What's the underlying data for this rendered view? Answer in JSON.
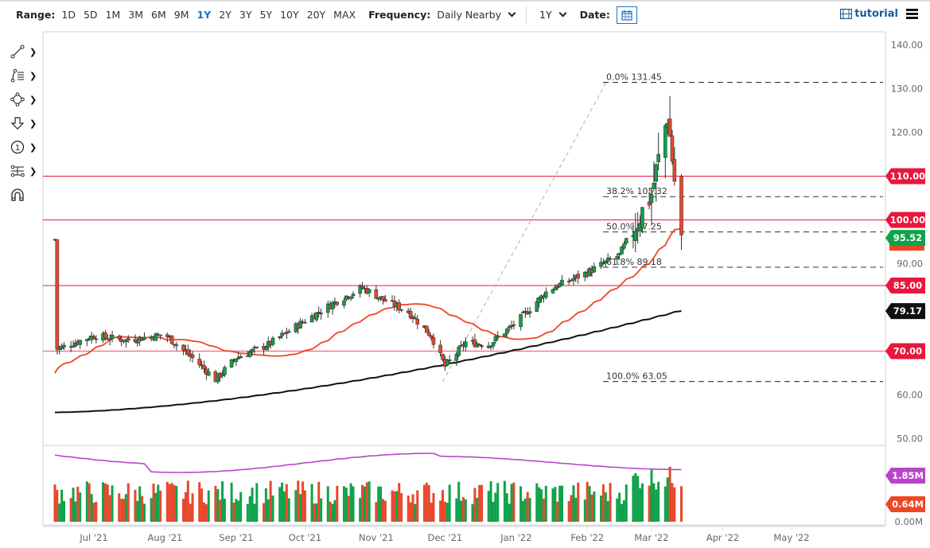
{
  "toolbar_top": {
    "range_label": "Range:",
    "ranges": [
      "1D",
      "5D",
      "1M",
      "3M",
      "6M",
      "9M",
      "1Y",
      "2Y",
      "3Y",
      "5Y",
      "10Y",
      "20Y",
      "MAX"
    ],
    "active_range": "1Y",
    "frequency_label": "Frequency:",
    "frequency_value": "Daily Nearby",
    "period_value": "1Y",
    "date_label": "Date:",
    "tutorial_label": "tutorial"
  },
  "drawing_tools": [
    {
      "name": "trend-line-tool",
      "icon": "line-icon"
    },
    {
      "name": "fibonacci-tool",
      "icon": "fib-icon"
    },
    {
      "name": "shapes-tool",
      "icon": "shape-icon"
    },
    {
      "name": "arrow-tool",
      "icon": "arrow-down-icon"
    },
    {
      "name": "annotation-tool",
      "icon": "number-circle-icon"
    },
    {
      "name": "measure-tool",
      "icon": "measure-icon"
    },
    {
      "name": "magnet-tool",
      "icon": "magnet-icon"
    }
  ],
  "colors": {
    "up": "#0fa34a",
    "down": "#e8482c",
    "ma50": "#f04624",
    "ma200": "#111111",
    "hline": "#e8173c",
    "hline_light": "#f17a8a",
    "volume_avg": "#b845c8",
    "volume_highlight": "#2b4fc4"
  },
  "chart_data": {
    "type": "candlestick",
    "title": "",
    "xlabel": "",
    "ylabel": "",
    "ylim": [
      50,
      140
    ],
    "y_ticks": [
      "140.00",
      "130.00",
      "120.00",
      "110.00",
      "100.00",
      "90.00",
      "60.00",
      "50.00"
    ],
    "x_ticks": [
      "Jul '21",
      "Aug '21",
      "Sep '21",
      "Oct '21",
      "Nov '21",
      "Dec '21",
      "Jan '22",
      "Feb '22",
      "Mar '22",
      "Apr '22",
      "May '22"
    ],
    "horizontal_lines": [
      {
        "label": "110.00",
        "value": 110
      },
      {
        "label": "100.00",
        "value": 100
      },
      {
        "label": "85.00",
        "value": 85
      },
      {
        "label": "70.00",
        "value": 70
      }
    ],
    "last_price": {
      "label": "95.52",
      "value": 95.52
    },
    "ma200_last": {
      "label": "79.17",
      "value": 79.17
    },
    "fibonacci": [
      {
        "label": "0.0% 131.45",
        "value": 131.45
      },
      {
        "label": "38.2% 105.32",
        "value": 105.32
      },
      {
        "label": "50.0% 97.25",
        "value": 97.25
      },
      {
        "label": "61.8% 89.18",
        "value": 89.18
      },
      {
        "label": "100.0% 63.05",
        "value": 63.05
      }
    ],
    "close_series_approx": {
      "dates": [
        "2021-06-15",
        "2021-07-01",
        "2021-07-15",
        "2021-08-01",
        "2021-08-15",
        "2021-08-23",
        "2021-09-01",
        "2021-09-15",
        "2021-10-01",
        "2021-10-15",
        "2021-10-26",
        "2021-11-05",
        "2021-11-15",
        "2021-11-25",
        "2021-12-01",
        "2021-12-10",
        "2021-12-20",
        "2022-01-01",
        "2022-01-15",
        "2022-02-01",
        "2022-02-15",
        "2022-03-01",
        "2022-03-08",
        "2022-03-11",
        "2022-03-14"
      ],
      "values": [
        70.5,
        73.5,
        72.5,
        73.8,
        67.5,
        63.5,
        68.5,
        71.5,
        77.0,
        81.5,
        84.5,
        81.5,
        79.0,
        73.5,
        66.5,
        72.0,
        71.5,
        76.5,
        84.0,
        88.0,
        92.0,
        106.0,
        124.0,
        109.0,
        95.52
      ]
    },
    "ma50_approx": {
      "start": 65.0,
      "end": 95.5
    },
    "ma200_approx": {
      "start": 56.0,
      "end": 79.17
    },
    "volume": {
      "ylim_label_top": "",
      "y_labels": [
        "1.85M",
        "0.64M",
        "0.00M"
      ],
      "avg_volume_last": "1.85M",
      "last_volume": "0.64M"
    }
  }
}
